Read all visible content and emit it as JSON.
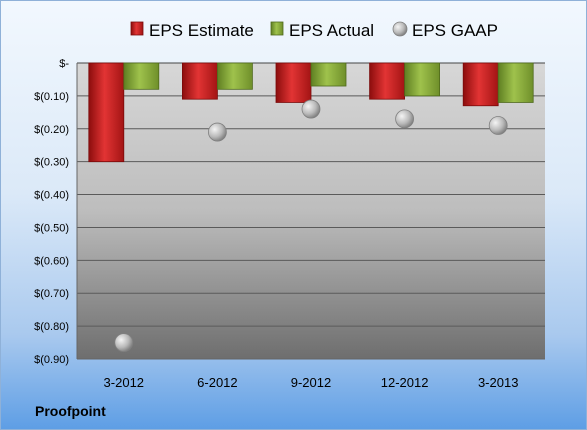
{
  "company": "Proofpoint",
  "chart_data": {
    "type": "bar",
    "categories": [
      "3-2012",
      "6-2012",
      "9-2012",
      "12-2012",
      "3-2013"
    ],
    "series": [
      {
        "name": "EPS Estimate",
        "kind": "bar",
        "color": "#cc1f1f",
        "values": [
          -0.3,
          -0.11,
          -0.12,
          -0.11,
          -0.13
        ]
      },
      {
        "name": "EPS Actual",
        "kind": "bar",
        "color": "#8db33c",
        "values": [
          -0.08,
          -0.08,
          -0.07,
          -0.1,
          -0.12
        ]
      },
      {
        "name": "EPS GAAP",
        "kind": "marker",
        "color": "#b4b4b4",
        "values": [
          -0.85,
          -0.21,
          -0.14,
          -0.17,
          -0.19
        ]
      }
    ],
    "ylim": [
      -0.9,
      0
    ],
    "yticks": [
      {
        "value": 0,
        "label": "$-"
      },
      {
        "value": -0.1,
        "label": "$(0.10)"
      },
      {
        "value": -0.2,
        "label": "$(0.20)"
      },
      {
        "value": -0.3,
        "label": "$(0.30)"
      },
      {
        "value": -0.4,
        "label": "$(0.40)"
      },
      {
        "value": -0.5,
        "label": "$(0.50)"
      },
      {
        "value": -0.6,
        "label": "$(0.60)"
      },
      {
        "value": -0.7,
        "label": "$(0.70)"
      },
      {
        "value": -0.8,
        "label": "$(0.80)"
      },
      {
        "value": -0.9,
        "label": "$(0.90)"
      }
    ],
    "grid": true,
    "legend_position": "top"
  }
}
